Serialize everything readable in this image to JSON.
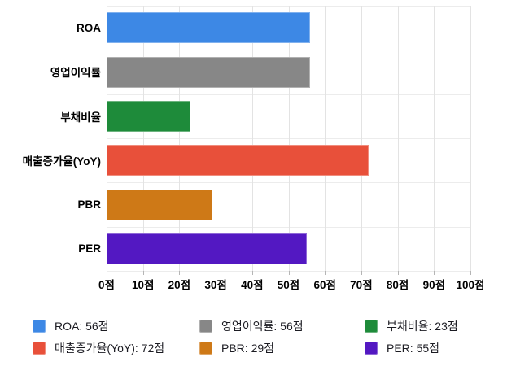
{
  "chart_data": {
    "type": "bar",
    "orientation": "horizontal",
    "title": "",
    "xlabel": "",
    "ylabel": "",
    "categories": [
      "ROA",
      "영업이익률",
      "부채비율",
      "매출증가율(YoY)",
      "PBR",
      "PER"
    ],
    "values": [
      56,
      56,
      23,
      72,
      29,
      55
    ],
    "value_unit": "점",
    "colors": [
      "#3d88e5",
      "#878787",
      "#1e8b3a",
      "#e8503a",
      "#ce7917",
      "#5318c2"
    ],
    "xlim": [
      0,
      100
    ],
    "x_tick_labels": [
      "0점",
      "10점",
      "20점",
      "30점",
      "40점",
      "50점",
      "60점",
      "70점",
      "80점",
      "90점",
      "100점"
    ],
    "grid": true,
    "legend_position": "bottom",
    "legend_items": [
      {
        "label": "ROA: 56점",
        "color": "#3d88e5"
      },
      {
        "label": "영업이익률: 56점",
        "color": "#878787"
      },
      {
        "label": "부채비율: 23점",
        "color": "#1e8b3a"
      },
      {
        "label": "매출증가율(YoY): 72점",
        "color": "#e8503a"
      },
      {
        "label": "PBR: 29점",
        "color": "#ce7917"
      },
      {
        "label": "PER: 55점",
        "color": "#5318c2"
      }
    ]
  }
}
